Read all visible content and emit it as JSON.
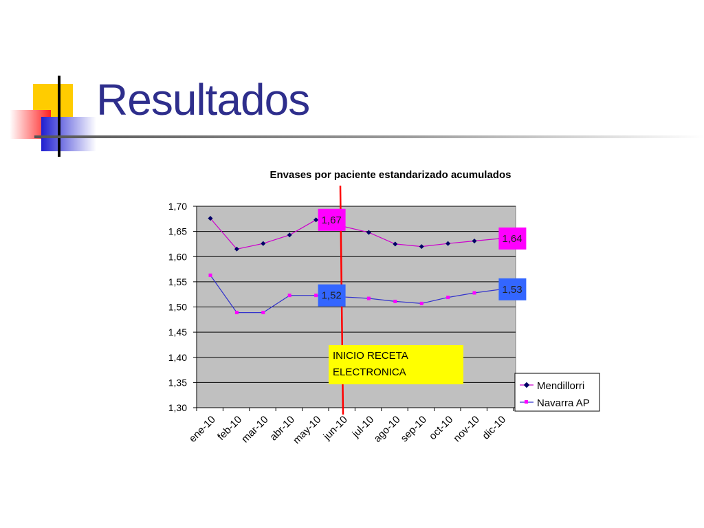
{
  "slide": {
    "title": "Resultados"
  },
  "colors": {
    "title": "#2e2e8c",
    "mendillorri": "#cc00cc",
    "mendillorri_marker": "#000066",
    "navarra_ap": "#3333cc",
    "navarra_ap_marker": "#ff00ff",
    "plot_background": "#c0c0c0",
    "event_line": "#ff0000",
    "annotation_box": "#ffff00",
    "label_box_magenta": "#ff00ff",
    "label_box_blue": "#3366ff"
  },
  "chart_data": {
    "type": "line",
    "title": "Envases por paciente estandarizado acumulados",
    "xlabel": "",
    "ylabel": "",
    "categories": [
      "ene-10",
      "feb-10",
      "mar-10",
      "abr-10",
      "may-10",
      "jun-10",
      "jul-10",
      "ago-10",
      "sep-10",
      "oct-10",
      "nov-10",
      "dic-10"
    ],
    "ylim": [
      1.3,
      1.7
    ],
    "yticks": [
      "1,30",
      "1,35",
      "1,40",
      "1,45",
      "1,50",
      "1,55",
      "1,60",
      "1,65",
      "1,70"
    ],
    "grid": true,
    "legend_position": "bottom-right",
    "series": [
      {
        "name": "Mendillorri",
        "values": [
          1.676,
          1.615,
          1.626,
          1.643,
          1.673,
          null,
          1.648,
          1.625,
          1.62,
          1.626,
          1.631,
          1.636
        ]
      },
      {
        "name": "Navarra AP",
        "values": [
          1.563,
          1.489,
          1.489,
          1.523,
          1.523,
          null,
          1.517,
          1.511,
          1.507,
          1.519,
          1.528,
          1.535
        ]
      }
    ],
    "data_labels": [
      {
        "series": 0,
        "category": "may-10",
        "text": "1,67"
      },
      {
        "series": 0,
        "category": "dic-10",
        "text": "1,64"
      },
      {
        "series": 1,
        "category": "may-10",
        "text": "1,52"
      },
      {
        "series": 1,
        "category": "dic-10",
        "text": "1,53"
      }
    ],
    "annotations": [
      {
        "text": "INICIO RECETA ELECTRONICA",
        "lines": [
          "INICIO RECETA",
          "ELECTRONICA"
        ],
        "category": "jun-10"
      }
    ]
  }
}
